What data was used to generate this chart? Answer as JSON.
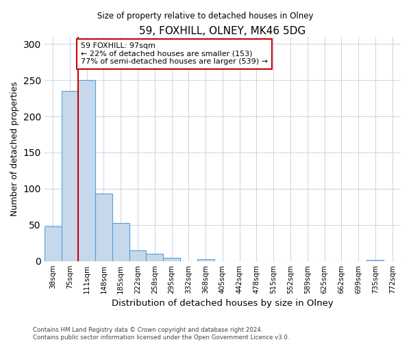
{
  "title": "59, FOXHILL, OLNEY, MK46 5DG",
  "subtitle": "Size of property relative to detached houses in Olney",
  "xlabel": "Distribution of detached houses by size in Olney",
  "ylabel": "Number of detached properties",
  "bin_labels": [
    "38sqm",
    "75sqm",
    "111sqm",
    "148sqm",
    "185sqm",
    "222sqm",
    "258sqm",
    "295sqm",
    "332sqm",
    "368sqm",
    "405sqm",
    "442sqm",
    "478sqm",
    "515sqm",
    "552sqm",
    "589sqm",
    "625sqm",
    "662sqm",
    "699sqm",
    "735sqm",
    "772sqm"
  ],
  "bar_values": [
    48,
    235,
    250,
    93,
    53,
    15,
    10,
    4,
    0,
    3,
    0,
    0,
    0,
    0,
    0,
    0,
    0,
    0,
    0,
    2,
    0
  ],
  "bar_color": "#c6d9ec",
  "bar_edge_color": "#5b9bd5",
  "vline_bin_index": 1.5,
  "vline_color": "#cc0000",
  "ylim": [
    0,
    310
  ],
  "yticks": [
    0,
    50,
    100,
    150,
    200,
    250,
    300
  ],
  "annotation_text": "59 FOXHILL: 97sqm\n← 22% of detached houses are smaller (153)\n77% of semi-detached houses are larger (539) →",
  "annotation_box_color": "#ffffff",
  "annotation_box_edge": "#cc0000",
  "footer1": "Contains HM Land Registry data © Crown copyright and database right 2024.",
  "footer2": "Contains public sector information licensed under the Open Government Licence v3.0."
}
